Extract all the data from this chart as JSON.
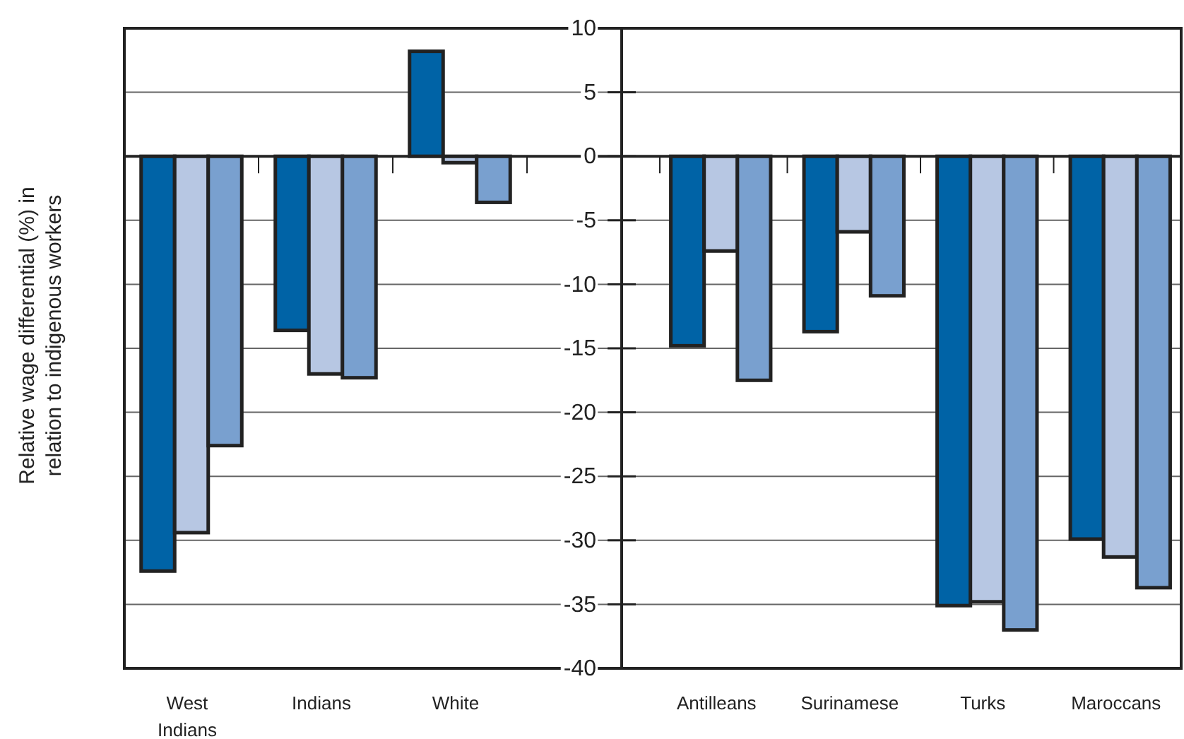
{
  "chart_data": [
    {
      "type": "bar",
      "ylabel": "Relative wage differential (%) in relation to indigenous workers",
      "categories": [
        "West Indians",
        "Indians",
        "White"
      ],
      "series": [
        {
          "color": "#0063a6",
          "values": [
            -32.4,
            -13.6,
            8.2
          ]
        },
        {
          "color": "#b7c7e3",
          "values": [
            -29.4,
            -17.0,
            -0.5
          ]
        },
        {
          "color": "#79a0cf",
          "values": [
            -22.6,
            -17.3,
            -3.6
          ]
        }
      ],
      "ylim": [
        -40,
        10
      ],
      "yticks": [
        -40,
        -35,
        -30,
        -25,
        -20,
        -15,
        -10,
        -5,
        0,
        5,
        10
      ],
      "grid": "y"
    },
    {
      "type": "bar",
      "categories": [
        "Antilleans",
        "Surinamese",
        "Turks",
        "Maroccans"
      ],
      "series": [
        {
          "color": "#0063a6",
          "values": [
            -14.8,
            -13.7,
            -35.1,
            -29.9
          ]
        },
        {
          "color": "#b7c7e3",
          "values": [
            -7.4,
            -5.9,
            -34.8,
            -31.3
          ]
        },
        {
          "color": "#79a0cf",
          "values": [
            -17.5,
            -10.9,
            -37.0,
            -33.7
          ]
        }
      ],
      "ylim": [
        -40,
        10
      ],
      "yticks": [
        -40,
        -35,
        -30,
        -25,
        -20,
        -15,
        -10,
        -5,
        0,
        5,
        10
      ],
      "grid": "y",
      "tick_labels": "x"
    }
  ]
}
